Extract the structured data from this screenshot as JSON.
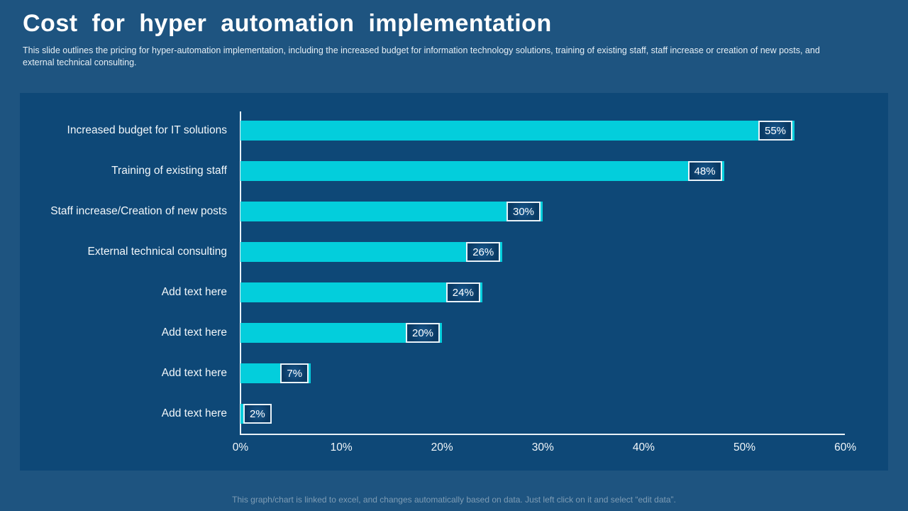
{
  "header": {
    "title": "Cost for hyper automation implementation",
    "subtitle": "This slide outlines the pricing for hyper-automation implementation, including the increased budget for information technology solutions, training of existing staff, staff increase or creation of new posts, and external technical consulting."
  },
  "chart_data": {
    "type": "bar",
    "orientation": "horizontal",
    "title": "",
    "categories": [
      "Increased budget for IT solutions",
      "Training of existing staff",
      "Staff increase/Creation of new posts",
      "External technical consulting",
      "Add text here",
      "Add text here",
      "Add text here",
      "Add text here"
    ],
    "values": [
      55,
      48,
      30,
      26,
      24,
      20,
      7,
      2
    ],
    "data_labels": [
      "55%",
      "48%",
      "30%",
      "26%",
      "24%",
      "20%",
      "7%",
      "2%"
    ],
    "x_ticks": [
      "0%",
      "10%",
      "20%",
      "30%",
      "40%",
      "50%",
      "60%"
    ],
    "xlim": [
      0,
      60
    ],
    "grid": false,
    "legend": false,
    "bar_color": "#03CEDC",
    "plot_background": "#0E4877"
  },
  "footer": {
    "note": "This graph/chart is linked to excel,  and changes automatically based on data. Just left click on it and select “edit data”."
  },
  "colors": {
    "slide_background": "#1E5480",
    "panel_background": "#0E4877",
    "bar": "#03CEDC",
    "axis_line": "#E8F1F7",
    "title_text": "#FFFFFF",
    "footer_text": "#7E9CB4"
  }
}
